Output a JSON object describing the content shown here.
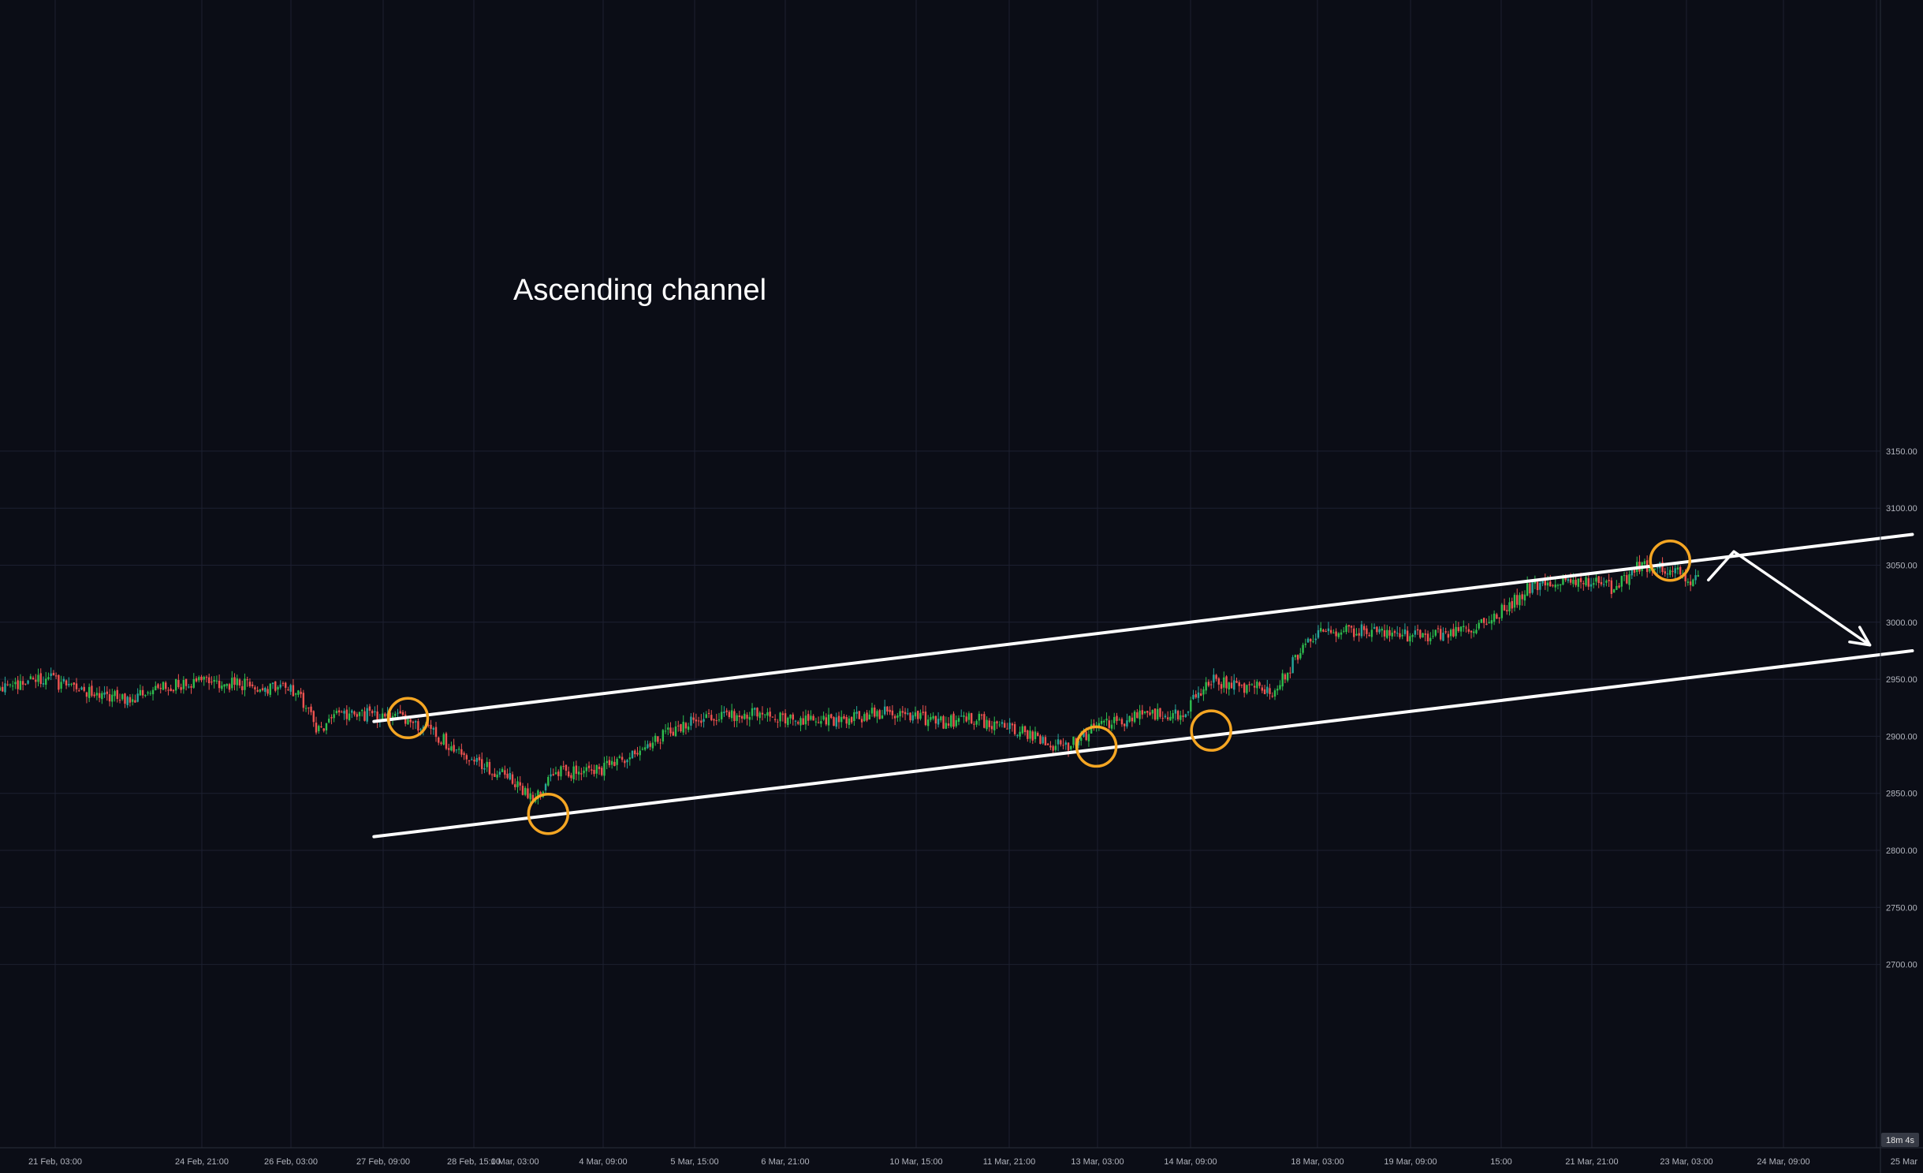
{
  "chart_data": {
    "type": "candlestick",
    "title": "",
    "xlabel": "",
    "ylabel": "",
    "ylim": [
      2672,
      3180
    ],
    "x_ticks": [
      "21 Feb, 03:00",
      "24 Feb, 21:00",
      "26 Feb, 03:00",
      "27 Feb, 09:00",
      "28 Feb, 15:00",
      "1 Mar, 03:00",
      "4 Mar, 09:00",
      "5 Mar, 15:00",
      "6 Mar, 21:00",
      "10 Mar, 15:00",
      "11 Mar, 21:00",
      "13 Mar, 03:00",
      "14 Mar, 09:00",
      "18 Mar, 03:00",
      "19 Mar, 09:00",
      "15:00",
      "21 Mar, 21:00",
      "23 Mar, 03:00",
      "24 Mar, 09:00",
      "25 Mar"
    ],
    "y_ticks": [
      2700,
      2750,
      2800,
      2850,
      2900,
      2950,
      3000,
      3050,
      3100,
      3150
    ],
    "y_tick_labels": [
      "2700.00",
      "2750.00",
      "2800.00",
      "2850.00",
      "2900.00",
      "2950.00",
      "3000.00",
      "3050.00",
      "3100.00",
      "3150.00"
    ],
    "countdown_label": "18m 4s",
    "annotation_text": "Ascending channel",
    "grid": true,
    "colors": {
      "background": "#0b0d16",
      "grid": "#1c2030",
      "up": "#26a69a",
      "up_bright": "#2ebd4e",
      "down": "#ef5350",
      "channel": "#ffffff",
      "touch_circle": "#f5a623"
    },
    "price_path": [
      [
        0,
        2940
      ],
      [
        1.0,
        2952
      ],
      [
        2.0,
        2938
      ],
      [
        3.0,
        2932
      ],
      [
        4.0,
        2944
      ],
      [
        5.0,
        2948
      ],
      [
        6.0,
        2945
      ],
      [
        7.0,
        2938
      ],
      [
        7.5,
        2905
      ],
      [
        8.0,
        2920
      ],
      [
        9.0,
        2918
      ],
      [
        9.6,
        2915
      ],
      [
        10.3,
        2900
      ],
      [
        11.0,
        2882
      ],
      [
        12.0,
        2862
      ],
      [
        12.6,
        2846
      ],
      [
        13.0,
        2870
      ],
      [
        14.0,
        2868
      ],
      [
        15.0,
        2888
      ],
      [
        16.0,
        2910
      ],
      [
        17.0,
        2918
      ],
      [
        18.0,
        2920
      ],
      [
        19.0,
        2912
      ],
      [
        20.0,
        2916
      ],
      [
        21.0,
        2922
      ],
      [
        22.0,
        2912
      ],
      [
        23.0,
        2915
      ],
      [
        24.0,
        2905
      ],
      [
        25.0,
        2890
      ],
      [
        26.0,
        2912
      ],
      [
        27.0,
        2918
      ],
      [
        27.8,
        2918
      ],
      [
        28.5,
        2950
      ],
      [
        29.0,
        2945
      ],
      [
        30.0,
        2940
      ],
      [
        30.5,
        2970
      ],
      [
        31.0,
        2990
      ],
      [
        32.0,
        2993
      ],
      [
        33.0,
        2988
      ],
      [
        34.0,
        2990
      ],
      [
        35.0,
        3000
      ],
      [
        36.0,
        3030
      ],
      [
        37.0,
        3038
      ],
      [
        38.0,
        3030
      ],
      [
        38.6,
        3050
      ],
      [
        39.3,
        3045
      ],
      [
        40.0,
        3035
      ]
    ],
    "channel_upper": [
      [
        8.8,
        2913
      ],
      [
        45.0,
        3077
      ]
    ],
    "channel_lower": [
      [
        8.8,
        2812
      ],
      [
        45.0,
        2975
      ]
    ],
    "projection_path": [
      [
        40.2,
        3037
      ],
      [
        40.8,
        3062
      ],
      [
        44.0,
        2980
      ]
    ],
    "touch_points": [
      [
        9.6,
        2916
      ],
      [
        12.9,
        2832
      ],
      [
        25.8,
        2891
      ],
      [
        28.5,
        2905
      ],
      [
        39.3,
        3054
      ]
    ]
  }
}
